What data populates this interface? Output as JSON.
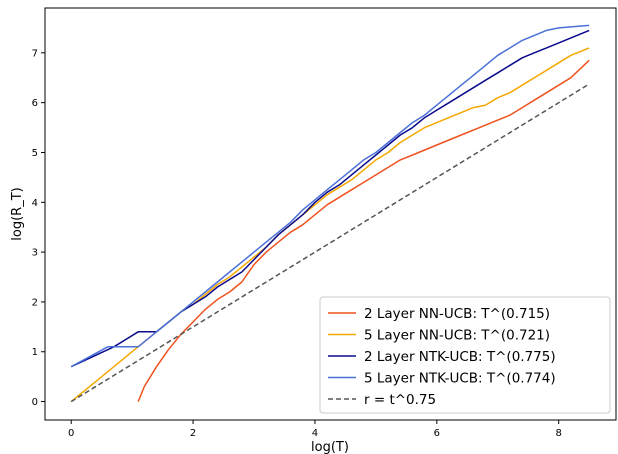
{
  "chart_data": {
    "type": "line",
    "title": "",
    "xlabel": "log(T)",
    "ylabel": "log(R_T)",
    "xlim": [
      -0.43,
      8.94
    ],
    "ylim": [
      -0.37,
      7.9
    ],
    "xticks": [
      0,
      2,
      4,
      6,
      8
    ],
    "yticks": [
      0,
      1,
      2,
      3,
      4,
      5,
      6,
      7
    ],
    "grid": false,
    "legend_position": "lower-right",
    "series": [
      {
        "name": "2 Layer NN-UCB: T^(0.715)",
        "color": "#f0521e",
        "dash": "",
        "x": [
          1.1,
          1.2,
          1.4,
          1.6,
          1.8,
          2.0,
          2.2,
          2.4,
          2.6,
          2.8,
          3.0,
          3.2,
          3.4,
          3.6,
          3.8,
          4.0,
          4.2,
          4.4,
          4.6,
          4.8,
          5.0,
          5.2,
          5.4,
          5.6,
          5.8,
          6.0,
          6.2,
          6.4,
          6.6,
          6.8,
          7.0,
          7.2,
          7.4,
          7.6,
          7.8,
          8.0,
          8.2,
          8.5
        ],
        "y": [
          0.0,
          0.3,
          0.7,
          1.05,
          1.35,
          1.6,
          1.85,
          2.05,
          2.2,
          2.4,
          2.75,
          3.0,
          3.2,
          3.4,
          3.55,
          3.75,
          3.95,
          4.1,
          4.25,
          4.4,
          4.55,
          4.7,
          4.85,
          4.95,
          5.05,
          5.15,
          5.25,
          5.35,
          5.45,
          5.55,
          5.65,
          5.75,
          5.9,
          6.05,
          6.2,
          6.35,
          6.5,
          6.85
        ]
      },
      {
        "name": "5 Layer NN-UCB: T^(0.721)",
        "color": "#f5a800",
        "dash": "",
        "x": [
          0.0,
          0.5,
          1.0,
          1.2,
          1.4,
          1.6,
          1.8,
          2.0,
          2.2,
          2.4,
          2.6,
          2.8,
          3.0,
          3.2,
          3.4,
          3.6,
          3.8,
          4.0,
          4.2,
          4.4,
          4.6,
          4.8,
          5.0,
          5.2,
          5.4,
          5.6,
          5.8,
          6.0,
          6.2,
          6.4,
          6.6,
          6.8,
          7.0,
          7.2,
          7.4,
          7.6,
          7.8,
          8.0,
          8.2,
          8.5
        ],
        "y": [
          0.0,
          0.5,
          1.0,
          1.2,
          1.4,
          1.6,
          1.8,
          1.95,
          2.15,
          2.35,
          2.5,
          2.7,
          2.9,
          3.1,
          3.35,
          3.55,
          3.75,
          3.95,
          4.15,
          4.3,
          4.45,
          4.65,
          4.85,
          5.0,
          5.2,
          5.35,
          5.5,
          5.6,
          5.7,
          5.8,
          5.9,
          5.95,
          6.1,
          6.2,
          6.35,
          6.5,
          6.65,
          6.8,
          6.95,
          7.1
        ]
      },
      {
        "name": "2 Layer NTK-UCB: T^(0.775)",
        "color": "#0a0a8c",
        "dash": "",
        "x": [
          0.0,
          0.7,
          1.1,
          1.4,
          1.6,
          1.8,
          2.0,
          2.2,
          2.4,
          2.6,
          2.8,
          3.0,
          3.2,
          3.4,
          3.6,
          3.8,
          4.0,
          4.2,
          4.4,
          4.6,
          4.8,
          5.0,
          5.2,
          5.4,
          5.6,
          5.8,
          6.0,
          6.2,
          6.4,
          6.6,
          6.8,
          7.0,
          7.2,
          7.4,
          7.6,
          7.8,
          8.0,
          8.2,
          8.5
        ],
        "y": [
          0.7,
          1.1,
          1.4,
          1.4,
          1.6,
          1.8,
          1.95,
          2.1,
          2.3,
          2.45,
          2.6,
          2.85,
          3.1,
          3.35,
          3.55,
          3.75,
          4.0,
          4.2,
          4.35,
          4.55,
          4.75,
          4.95,
          5.15,
          5.35,
          5.5,
          5.7,
          5.85,
          6.0,
          6.15,
          6.3,
          6.45,
          6.6,
          6.75,
          6.9,
          7.0,
          7.1,
          7.2,
          7.3,
          7.45
        ]
      },
      {
        "name": "5 Layer NTK-UCB: T^(0.774)",
        "color": "#4a70d8",
        "dash": "",
        "x": [
          0.0,
          0.6,
          0.9,
          1.1,
          1.4,
          1.6,
          1.8,
          2.0,
          2.2,
          2.4,
          2.6,
          2.8,
          3.0,
          3.2,
          3.4,
          3.6,
          3.8,
          4.0,
          4.2,
          4.4,
          4.6,
          4.8,
          5.0,
          5.2,
          5.4,
          5.6,
          5.8,
          6.0,
          6.2,
          6.4,
          6.6,
          6.8,
          7.0,
          7.2,
          7.4,
          7.6,
          7.8,
          8.0,
          8.2,
          8.5
        ],
        "y": [
          0.7,
          1.1,
          1.1,
          1.1,
          1.4,
          1.6,
          1.8,
          2.0,
          2.2,
          2.4,
          2.6,
          2.8,
          3.0,
          3.2,
          3.4,
          3.6,
          3.85,
          4.05,
          4.25,
          4.45,
          4.65,
          4.85,
          5.0,
          5.2,
          5.4,
          5.6,
          5.75,
          5.95,
          6.15,
          6.35,
          6.55,
          6.75,
          6.95,
          7.1,
          7.25,
          7.35,
          7.45,
          7.5,
          7.52,
          7.55
        ]
      },
      {
        "name": "r = t^0.75",
        "color": "#555555",
        "dash": "5,3",
        "x": [
          0.0,
          8.5
        ],
        "y": [
          0.0,
          6.375
        ]
      }
    ]
  }
}
